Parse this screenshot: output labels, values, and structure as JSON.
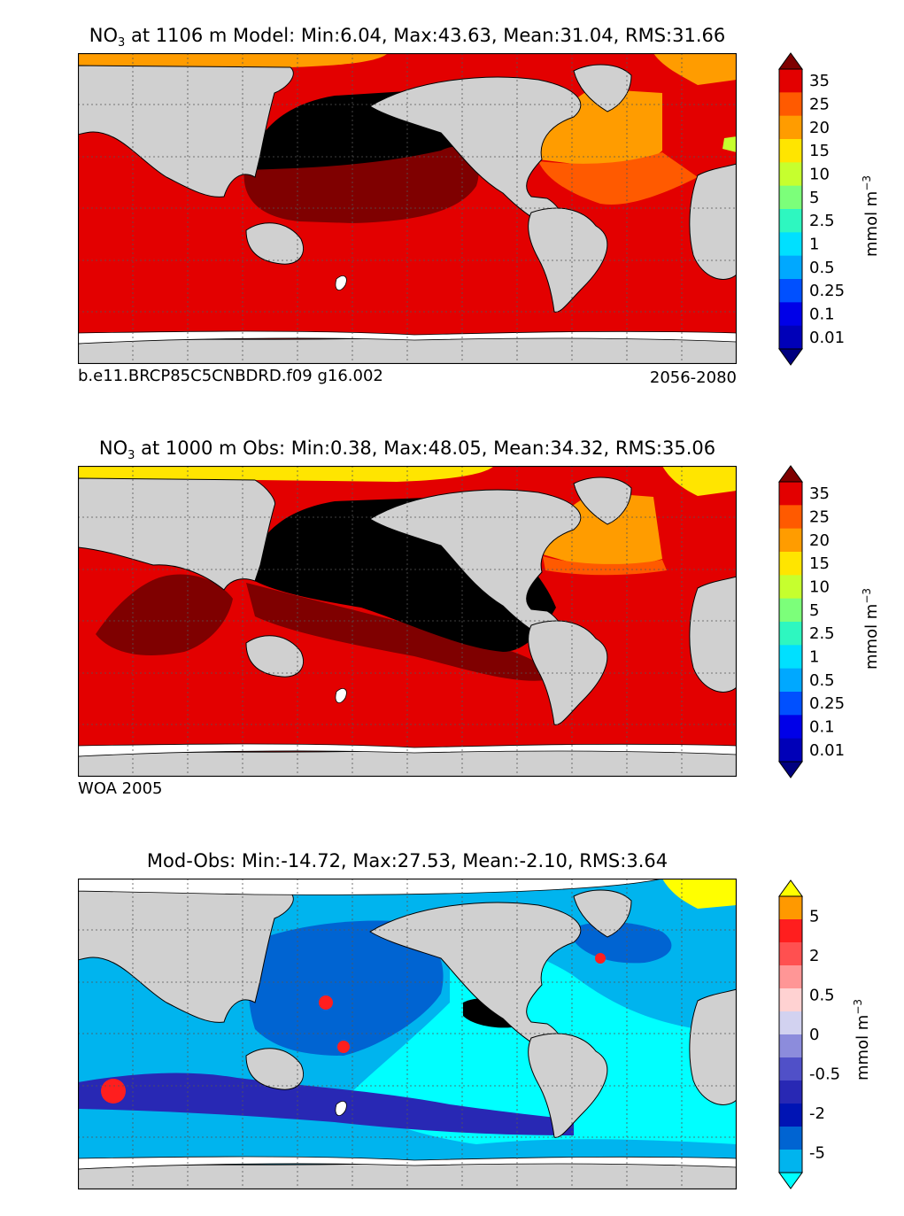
{
  "chart_data": [
    {
      "type": "heatmap",
      "title": "NO₃ at 1106 m Model: Min:6.04, Max:43.63, Mean:31.04, RMS:31.66",
      "title_parts": {
        "species": "NO",
        "subscript": "3",
        "rest": " at 1106 m Model: Min:6.04, Max:43.63, Mean:31.04, RMS:31.66"
      },
      "stats": {
        "min": 6.04,
        "max": 43.63,
        "mean": 31.04,
        "rms": 31.66
      },
      "depth_m": 1106,
      "case_label": "b.e11.BRCP85C5CNBDRD.f09 g16.002",
      "period_label": "2056-2080",
      "colorbar": {
        "label": "mmol m",
        "label_exponent": "−3",
        "ticks": [
          "35",
          "25",
          "20",
          "15",
          "10",
          "5",
          "2.5",
          "1",
          "0.5",
          "0.25",
          "0.1",
          "0.01"
        ],
        "levels": [
          0.01,
          0.1,
          0.25,
          0.5,
          1,
          2.5,
          5,
          10,
          15,
          20,
          25,
          35
        ],
        "colors": [
          "#00007f",
          "#0000b8",
          "#0000e8",
          "#0050ff",
          "#00a8ff",
          "#00e0ff",
          "#2ef7c0",
          "#7cff7a",
          "#c6ff2e",
          "#ffe500",
          "#ff9c00",
          "#ff5a00",
          "#e30000",
          "#7f0000"
        ]
      },
      "regions": {
        "north_pacific": "#000000",
        "pacific_tongue": "#7f0000",
        "global": "#e30000",
        "north_atlantic": "#ff9c00",
        "arctic": "#ff9c00",
        "subpolar_atl": "#ff5a00",
        "med": "#c6ff2e",
        "land": "#d0d0d0",
        "ice": "#ffffff"
      }
    },
    {
      "type": "heatmap",
      "title": "NO₃ at 1000 m Obs: Min:0.38, Max:48.05, Mean:34.32, RMS:35.06",
      "title_parts": {
        "species": "NO",
        "subscript": "3",
        "rest": " at 1000 m Obs: Min:0.38, Max:48.05, Mean:34.32, RMS:35.06"
      },
      "stats": {
        "min": 0.38,
        "max": 48.05,
        "mean": 34.32,
        "rms": 35.06
      },
      "depth_m": 1000,
      "source_label": "WOA 2005",
      "colorbar": {
        "label": "mmol m",
        "label_exponent": "−3",
        "ticks": [
          "35",
          "25",
          "20",
          "15",
          "10",
          "5",
          "2.5",
          "1",
          "0.5",
          "0.25",
          "0.1",
          "0.01"
        ],
        "levels": [
          0.01,
          0.1,
          0.25,
          0.5,
          1,
          2.5,
          5,
          10,
          15,
          20,
          25,
          35
        ],
        "colors": [
          "#00007f",
          "#0000b8",
          "#0000e8",
          "#0050ff",
          "#00a8ff",
          "#00e0ff",
          "#2ef7c0",
          "#7cff7a",
          "#c6ff2e",
          "#ffe500",
          "#ff9c00",
          "#ff5a00",
          "#e30000",
          "#7f0000"
        ]
      },
      "regions": {
        "north_pacific": "#000000",
        "indian_tropical": "#7f0000",
        "global": "#e30000",
        "north_atlantic": "#ff9c00",
        "arctic": "#ffe500",
        "subpolar_atl": "#ff5a00",
        "land": "#d0d0d0",
        "ice": "#ffffff"
      }
    },
    {
      "type": "heatmap",
      "title": "Mod-Obs: Min:-14.72, Max:27.53, Mean:-2.10, RMS:3.64",
      "stats": {
        "min": -14.72,
        "max": 27.53,
        "mean": -2.1,
        "rms": 3.64
      },
      "colorbar": {
        "label": "mmol m",
        "label_exponent": "−3",
        "ticks": [
          "5",
          "2",
          "0.5",
          "0",
          "-0.5",
          "-2",
          "-5"
        ],
        "levels": [
          -5,
          -3,
          -2,
          -1,
          -0.5,
          -0.25,
          0,
          0.25,
          0.5,
          1,
          2,
          3,
          5
        ],
        "colors": [
          "#00ffff",
          "#00b4ee",
          "#0064d2",
          "#0014b4",
          "#2828b4",
          "#5050c8",
          "#8c8cdc",
          "#d2d2f0",
          "#ffd2d2",
          "#ff9696",
          "#ff5050",
          "#ff1e1e",
          "#ff9900",
          "#ffff00"
        ]
      },
      "regions": {
        "tropical_pacific": "#00ffff",
        "subtropics": "#00b4ee",
        "west_pacific": "#0064d2",
        "southern_band": "#2828b4",
        "gulf_of_mexico": "#000000",
        "arctic": "#ffff00",
        "hotspot": "#ff1e1e",
        "land": "#d0d0d0",
        "ice": "#ffffff"
      }
    }
  ]
}
